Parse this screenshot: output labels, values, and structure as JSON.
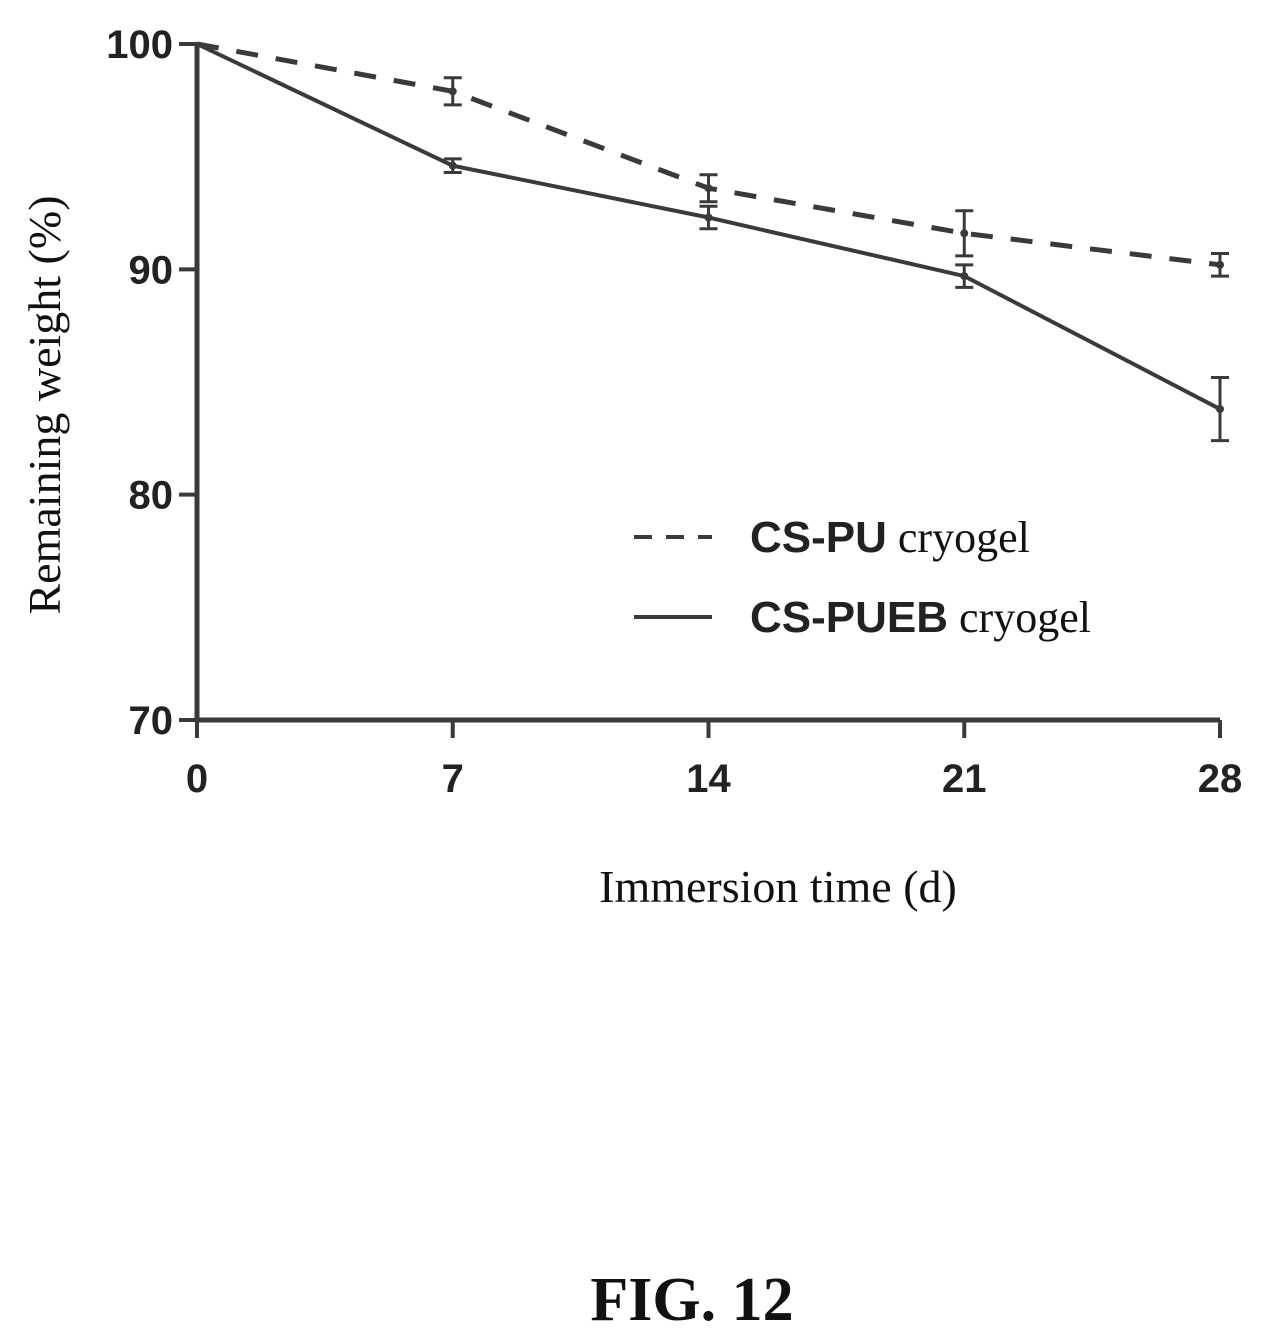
{
  "chart_data": {
    "type": "line",
    "xlabel": "Immersion time (d)",
    "ylabel": "Remaining weight (%)",
    "x": [
      0,
      7,
      14,
      21,
      28
    ],
    "x_ticks": [
      "0",
      "7",
      "14",
      "21",
      "28"
    ],
    "y_ticks": [
      "70",
      "80",
      "90",
      "100"
    ],
    "xlim": [
      0,
      28
    ],
    "ylim": [
      70,
      100
    ],
    "grid": false,
    "legend_position": "lower-right",
    "series": [
      {
        "name_bold": "CS-PU",
        "name_rest": " cryogel",
        "style": "dashed",
        "values": [
          100,
          97.9,
          93.6,
          91.6,
          90.2
        ],
        "errors": [
          0,
          0.6,
          0.6,
          1.0,
          0.5
        ]
      },
      {
        "name_bold": "CS-PUEB",
        "name_rest": " cryogel",
        "style": "solid",
        "values": [
          100,
          94.6,
          92.3,
          89.7,
          83.8
        ],
        "errors": [
          0,
          0.3,
          0.5,
          0.5,
          1.4
        ]
      }
    ]
  },
  "caption": "FIG. 12",
  "colors": {
    "line": "#3a3a3a",
    "text": "#1a1a1a"
  }
}
